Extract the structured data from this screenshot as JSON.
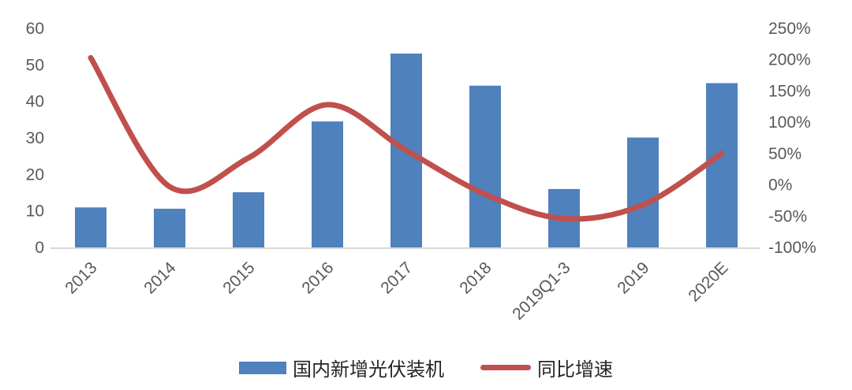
{
  "chart_data": {
    "type": "bar",
    "combo": "bar+line",
    "title": "",
    "categories": [
      "2013",
      "2014",
      "2015",
      "2016",
      "2017",
      "2018",
      "2019Q1-3",
      "2019",
      "2020E"
    ],
    "series": [
      {
        "name": "国内新增光伏装机",
        "type": "bar",
        "axis": "left",
        "color": "#4f81bd",
        "values": [
          10.95,
          10.6,
          15.1,
          34.5,
          53.1,
          44.3,
          16,
          30.1,
          45
        ]
      },
      {
        "name": "同比增速",
        "type": "line",
        "axis": "right",
        "unit": "%",
        "color": "#c0504d",
        "values": [
          203,
          -3,
          43,
          128,
          55,
          -15,
          -54,
          -32,
          50
        ]
      }
    ],
    "left_axis": {
      "min": 0,
      "max": 60,
      "step": 10,
      "tick_labels": [
        "0",
        "10",
        "20",
        "30",
        "40",
        "50",
        "60"
      ]
    },
    "right_axis": {
      "min": -100,
      "max": 250,
      "step": 50,
      "tick_labels": [
        "-100%",
        "-50%",
        "0%",
        "50%",
        "100%",
        "150%",
        "200%",
        "250%"
      ]
    },
    "grid": false,
    "legend_position": "bottom",
    "x_label_rotation_deg": -45
  },
  "legend": {
    "items": [
      {
        "label": "国内新增光伏装机",
        "swatch": "bar",
        "color": "#4f81bd"
      },
      {
        "label": "同比增速",
        "swatch": "line",
        "color": "#c0504d"
      }
    ]
  },
  "colors": {
    "bar": "#4f81bd",
    "line": "#c0504d",
    "axis_text": "#595959",
    "axis_line": "#d7d7d7",
    "legend_text": "#262626",
    "background": "#ffffff"
  }
}
